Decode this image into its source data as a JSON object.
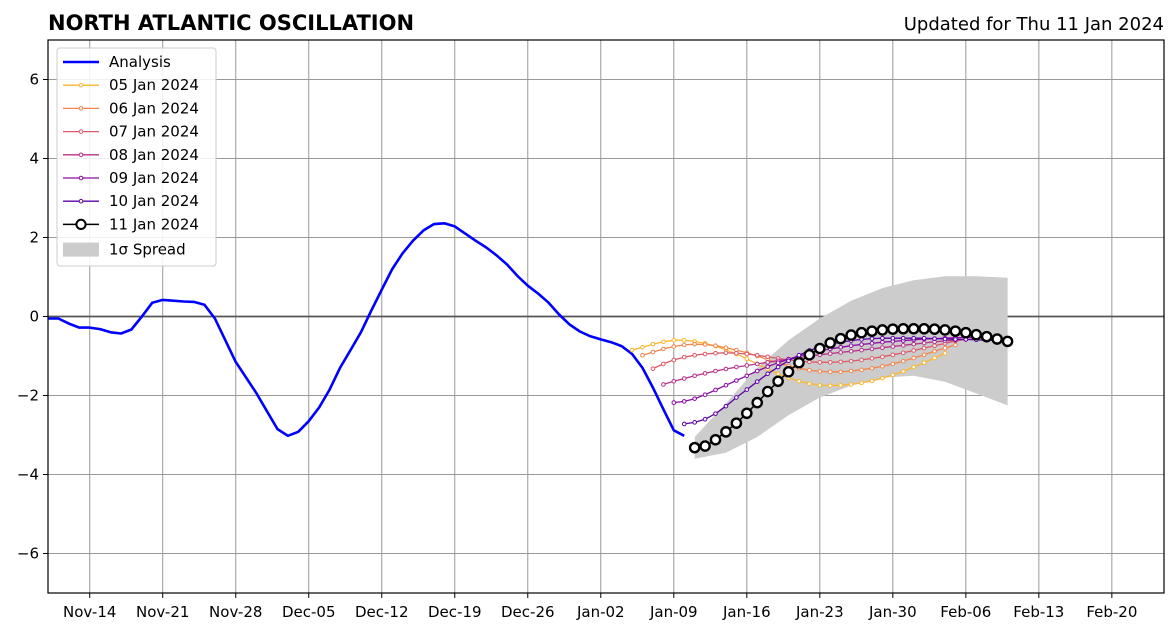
{
  "chart_data": {
    "type": "line",
    "title": "NORTH ATLANTIC OSCILLATION",
    "subtitle": "Updated for Thu 11 Jan 2024",
    "xlim": [
      "2023-11-10",
      "2024-02-25"
    ],
    "ylim": [
      -7,
      7
    ],
    "yticks": [
      6,
      4,
      2,
      0,
      -2,
      -4,
      -6
    ],
    "ytick_labels": [
      "6",
      "4",
      "2",
      "0",
      "−2",
      "−4",
      "−6"
    ],
    "xticks": [
      "2023-11-14",
      "2023-11-21",
      "2023-11-28",
      "2023-12-05",
      "2023-12-12",
      "2023-12-19",
      "2023-12-26",
      "2024-01-02",
      "2024-01-09",
      "2024-01-16",
      "2024-01-23",
      "2024-01-30",
      "2024-02-06",
      "2024-02-13",
      "2024-02-20"
    ],
    "xtick_labels": [
      "Nov-14",
      "Nov-21",
      "Nov-28",
      "Dec-05",
      "Dec-12",
      "Dec-19",
      "Dec-26",
      "Jan-02",
      "Jan-09",
      "Jan-16",
      "Jan-23",
      "Jan-30",
      "Feb-06",
      "Feb-13",
      "Feb-20"
    ],
    "grid": true,
    "zero_line": true,
    "legend_position": "top-left",
    "series": [
      {
        "name": "Analysis",
        "color": "#0000ff",
        "style": "line",
        "x": [
          "2023-11-10",
          "2023-11-11",
          "2023-11-12",
          "2023-11-13",
          "2023-11-14",
          "2023-11-15",
          "2023-11-16",
          "2023-11-17",
          "2023-11-18",
          "2023-11-19",
          "2023-11-20",
          "2023-11-21",
          "2023-11-22",
          "2023-11-23",
          "2023-11-24",
          "2023-11-25",
          "2023-11-26",
          "2023-11-27",
          "2023-11-28",
          "2023-11-29",
          "2023-11-30",
          "2023-12-01",
          "2023-12-02",
          "2023-12-03",
          "2023-12-04",
          "2023-12-05",
          "2023-12-06",
          "2023-12-07",
          "2023-12-08",
          "2023-12-09",
          "2023-12-10",
          "2023-12-11",
          "2023-12-12",
          "2023-12-13",
          "2023-12-14",
          "2023-12-15",
          "2023-12-16",
          "2023-12-17",
          "2023-12-18",
          "2023-12-19",
          "2023-12-20",
          "2023-12-21",
          "2023-12-22",
          "2023-12-23",
          "2023-12-24",
          "2023-12-25",
          "2023-12-26",
          "2023-12-27",
          "2023-12-28",
          "2023-12-29",
          "2023-12-30",
          "2023-12-31",
          "2024-01-01",
          "2024-01-02",
          "2024-01-03",
          "2024-01-04",
          "2024-01-05",
          "2024-01-06",
          "2024-01-07",
          "2024-01-08",
          "2024-01-09",
          "2024-01-10"
        ],
        "y": [
          -0.05,
          -0.05,
          -0.18,
          -0.28,
          -0.28,
          -0.32,
          -0.4,
          -0.43,
          -0.33,
          0.0,
          0.35,
          0.42,
          0.4,
          0.38,
          0.37,
          0.3,
          -0.05,
          -0.6,
          -1.15,
          -1.55,
          -1.95,
          -2.4,
          -2.85,
          -3.02,
          -2.92,
          -2.65,
          -2.3,
          -1.85,
          -1.3,
          -0.85,
          -0.4,
          0.15,
          0.68,
          1.2,
          1.6,
          1.92,
          2.18,
          2.34,
          2.36,
          2.28,
          2.1,
          1.92,
          1.75,
          1.55,
          1.32,
          1.03,
          0.78,
          0.58,
          0.35,
          0.05,
          -0.2,
          -0.38,
          -0.5,
          -0.58,
          -0.65,
          -0.75,
          -0.95,
          -1.3,
          -1.8,
          -2.35,
          -2.88,
          -3.02
        ]
      },
      {
        "name": "05 Jan 2024",
        "color": "#fcb62e",
        "style": "small",
        "x": [
          "2024-01-05",
          "2024-01-06",
          "2024-01-07",
          "2024-01-08",
          "2024-01-09",
          "2024-01-10",
          "2024-01-11",
          "2024-01-12",
          "2024-01-13",
          "2024-01-14",
          "2024-01-15",
          "2024-01-16",
          "2024-01-17",
          "2024-01-18",
          "2024-01-19",
          "2024-01-20",
          "2024-01-21",
          "2024-01-22",
          "2024-01-23",
          "2024-01-24",
          "2024-01-25",
          "2024-01-26",
          "2024-01-27",
          "2024-01-28",
          "2024-01-29",
          "2024-01-30",
          "2024-01-31",
          "2024-02-01",
          "2024-02-02",
          "2024-02-03",
          "2024-02-04"
        ],
        "y": [
          -0.85,
          -0.78,
          -0.7,
          -0.64,
          -0.6,
          -0.6,
          -0.63,
          -0.68,
          -0.75,
          -0.84,
          -0.95,
          -1.07,
          -1.2,
          -1.33,
          -1.45,
          -1.55,
          -1.64,
          -1.7,
          -1.74,
          -1.75,
          -1.74,
          -1.72,
          -1.68,
          -1.63,
          -1.56,
          -1.48,
          -1.39,
          -1.28,
          -1.17,
          -1.05,
          -0.93
        ]
      },
      {
        "name": "06 Jan 2024",
        "color": "#f3854a",
        "style": "small",
        "x": [
          "2024-01-06",
          "2024-01-07",
          "2024-01-08",
          "2024-01-09",
          "2024-01-10",
          "2024-01-11",
          "2024-01-12",
          "2024-01-13",
          "2024-01-14",
          "2024-01-15",
          "2024-01-16",
          "2024-01-17",
          "2024-01-18",
          "2024-01-19",
          "2024-01-20",
          "2024-01-21",
          "2024-01-22",
          "2024-01-23",
          "2024-01-24",
          "2024-01-25",
          "2024-01-26",
          "2024-01-27",
          "2024-01-28",
          "2024-01-29",
          "2024-01-30",
          "2024-01-31",
          "2024-02-01",
          "2024-02-02",
          "2024-02-03",
          "2024-02-04",
          "2024-02-05"
        ],
        "y": [
          -0.98,
          -0.9,
          -0.82,
          -0.76,
          -0.72,
          -0.7,
          -0.71,
          -0.74,
          -0.79,
          -0.85,
          -0.92,
          -1.0,
          -1.09,
          -1.17,
          -1.25,
          -1.31,
          -1.36,
          -1.39,
          -1.4,
          -1.4,
          -1.38,
          -1.35,
          -1.31,
          -1.26,
          -1.2,
          -1.13,
          -1.05,
          -0.97,
          -0.88,
          -0.8,
          -0.72
        ]
      },
      {
        "name": "07 Jan 2024",
        "color": "#dc5a68",
        "style": "small",
        "x": [
          "2024-01-07",
          "2024-01-08",
          "2024-01-09",
          "2024-01-10",
          "2024-01-11",
          "2024-01-12",
          "2024-01-13",
          "2024-01-14",
          "2024-01-15",
          "2024-01-16",
          "2024-01-17",
          "2024-01-18",
          "2024-01-19",
          "2024-01-20",
          "2024-01-21",
          "2024-01-22",
          "2024-01-23",
          "2024-01-24",
          "2024-01-25",
          "2024-01-26",
          "2024-01-27",
          "2024-01-28",
          "2024-01-29",
          "2024-01-30",
          "2024-01-31",
          "2024-02-01",
          "2024-02-02",
          "2024-02-03",
          "2024-02-04",
          "2024-02-05",
          "2024-02-06"
        ],
        "y": [
          -1.32,
          -1.2,
          -1.1,
          -1.03,
          -0.98,
          -0.95,
          -0.93,
          -0.92,
          -0.93,
          -0.95,
          -0.98,
          -1.02,
          -1.06,
          -1.1,
          -1.13,
          -1.15,
          -1.16,
          -1.16,
          -1.15,
          -1.13,
          -1.1,
          -1.06,
          -1.02,
          -0.97,
          -0.92,
          -0.86,
          -0.8,
          -0.74,
          -0.68,
          -0.62,
          -0.58
        ]
      },
      {
        "name": "08 Jan 2024",
        "color": "#b83289",
        "style": "small",
        "x": [
          "2024-01-08",
          "2024-01-09",
          "2024-01-10",
          "2024-01-11",
          "2024-01-12",
          "2024-01-13",
          "2024-01-14",
          "2024-01-15",
          "2024-01-16",
          "2024-01-17",
          "2024-01-18",
          "2024-01-19",
          "2024-01-20",
          "2024-01-21",
          "2024-01-22",
          "2024-01-23",
          "2024-01-24",
          "2024-01-25",
          "2024-01-26",
          "2024-01-27",
          "2024-01-28",
          "2024-01-29",
          "2024-01-30",
          "2024-01-31",
          "2024-02-01",
          "2024-02-02",
          "2024-02-03",
          "2024-02-04",
          "2024-02-05",
          "2024-02-06",
          "2024-02-07"
        ],
        "y": [
          -1.72,
          -1.64,
          -1.57,
          -1.5,
          -1.44,
          -1.38,
          -1.33,
          -1.28,
          -1.24,
          -1.2,
          -1.16,
          -1.12,
          -1.08,
          -1.04,
          -1.0,
          -0.97,
          -0.94,
          -0.91,
          -0.88,
          -0.85,
          -0.82,
          -0.79,
          -0.76,
          -0.73,
          -0.7,
          -0.67,
          -0.64,
          -0.62,
          -0.6,
          -0.58,
          -0.57
        ]
      },
      {
        "name": "09 Jan 2024",
        "color": "#8b0aa5",
        "style": "small",
        "x": [
          "2024-01-09",
          "2024-01-10",
          "2024-01-11",
          "2024-01-12",
          "2024-01-13",
          "2024-01-14",
          "2024-01-15",
          "2024-01-16",
          "2024-01-17",
          "2024-01-18",
          "2024-01-19",
          "2024-01-20",
          "2024-01-21",
          "2024-01-22",
          "2024-01-23",
          "2024-01-24",
          "2024-01-25",
          "2024-01-26",
          "2024-01-27",
          "2024-01-28",
          "2024-01-29",
          "2024-01-30",
          "2024-01-31",
          "2024-02-01",
          "2024-02-02",
          "2024-02-03",
          "2024-02-04",
          "2024-02-05",
          "2024-02-06",
          "2024-02-07",
          "2024-02-08"
        ],
        "y": [
          -2.18,
          -2.15,
          -2.08,
          -1.98,
          -1.86,
          -1.74,
          -1.62,
          -1.5,
          -1.38,
          -1.27,
          -1.17,
          -1.08,
          -1.0,
          -0.93,
          -0.87,
          -0.82,
          -0.78,
          -0.74,
          -0.71,
          -0.68,
          -0.65,
          -0.63,
          -0.61,
          -0.59,
          -0.57,
          -0.56,
          -0.55,
          -0.54,
          -0.53,
          -0.53,
          -0.53
        ]
      },
      {
        "name": "10 Jan 2024",
        "color": "#5c01a6",
        "style": "small",
        "x": [
          "2024-01-10",
          "2024-01-11",
          "2024-01-12",
          "2024-01-13",
          "2024-01-14",
          "2024-01-15",
          "2024-01-16",
          "2024-01-17",
          "2024-01-18",
          "2024-01-19",
          "2024-01-20",
          "2024-01-21",
          "2024-01-22",
          "2024-01-23",
          "2024-01-24",
          "2024-01-25",
          "2024-01-26",
          "2024-01-27",
          "2024-01-28",
          "2024-01-29",
          "2024-01-30",
          "2024-01-31",
          "2024-02-01",
          "2024-02-02",
          "2024-02-03",
          "2024-02-04",
          "2024-02-05",
          "2024-02-06",
          "2024-02-07",
          "2024-02-08",
          "2024-02-09"
        ],
        "y": [
          -2.72,
          -2.68,
          -2.6,
          -2.46,
          -2.27,
          -2.05,
          -1.85,
          -1.65,
          -1.45,
          -1.28,
          -1.12,
          -0.98,
          -0.86,
          -0.77,
          -0.7,
          -0.65,
          -0.61,
          -0.58,
          -0.56,
          -0.55,
          -0.55,
          -0.55,
          -0.55,
          -0.55,
          -0.56,
          -0.57,
          -0.58,
          -0.58,
          -0.59,
          -0.6,
          -0.6
        ]
      },
      {
        "name": "11 Jan 2024",
        "color": "#000000",
        "style": "big",
        "x": [
          "2024-01-11",
          "2024-01-12",
          "2024-01-13",
          "2024-01-14",
          "2024-01-15",
          "2024-01-16",
          "2024-01-17",
          "2024-01-18",
          "2024-01-19",
          "2024-01-20",
          "2024-01-21",
          "2024-01-22",
          "2024-01-23",
          "2024-01-24",
          "2024-01-25",
          "2024-01-26",
          "2024-01-27",
          "2024-01-28",
          "2024-01-29",
          "2024-01-30",
          "2024-01-31",
          "2024-02-01",
          "2024-02-02",
          "2024-02-03",
          "2024-02-04",
          "2024-02-05",
          "2024-02-06",
          "2024-02-07",
          "2024-02-08",
          "2024-02-09",
          "2024-02-10"
        ],
        "y": [
          -3.32,
          -3.28,
          -3.12,
          -2.92,
          -2.7,
          -2.45,
          -2.18,
          -1.9,
          -1.64,
          -1.4,
          -1.17,
          -0.97,
          -0.81,
          -0.67,
          -0.56,
          -0.47,
          -0.41,
          -0.37,
          -0.34,
          -0.32,
          -0.31,
          -0.31,
          -0.31,
          -0.32,
          -0.34,
          -0.37,
          -0.41,
          -0.46,
          -0.51,
          -0.57,
          -0.63
        ]
      }
    ],
    "spread": {
      "name": "1σ Spread",
      "color": "#cccccc",
      "x": [
        "2024-01-11",
        "2024-01-14",
        "2024-01-17",
        "2024-01-20",
        "2024-01-23",
        "2024-01-26",
        "2024-01-29",
        "2024-02-01",
        "2024-02-04",
        "2024-02-07",
        "2024-02-10"
      ],
      "upper": [
        -3.05,
        -2.2,
        -1.3,
        -0.6,
        -0.05,
        0.4,
        0.72,
        0.92,
        1.02,
        1.02,
        0.98
      ],
      "lower": [
        -3.6,
        -3.45,
        -3.05,
        -2.5,
        -2.05,
        -1.75,
        -1.55,
        -1.5,
        -1.65,
        -1.95,
        -2.25
      ]
    }
  }
}
